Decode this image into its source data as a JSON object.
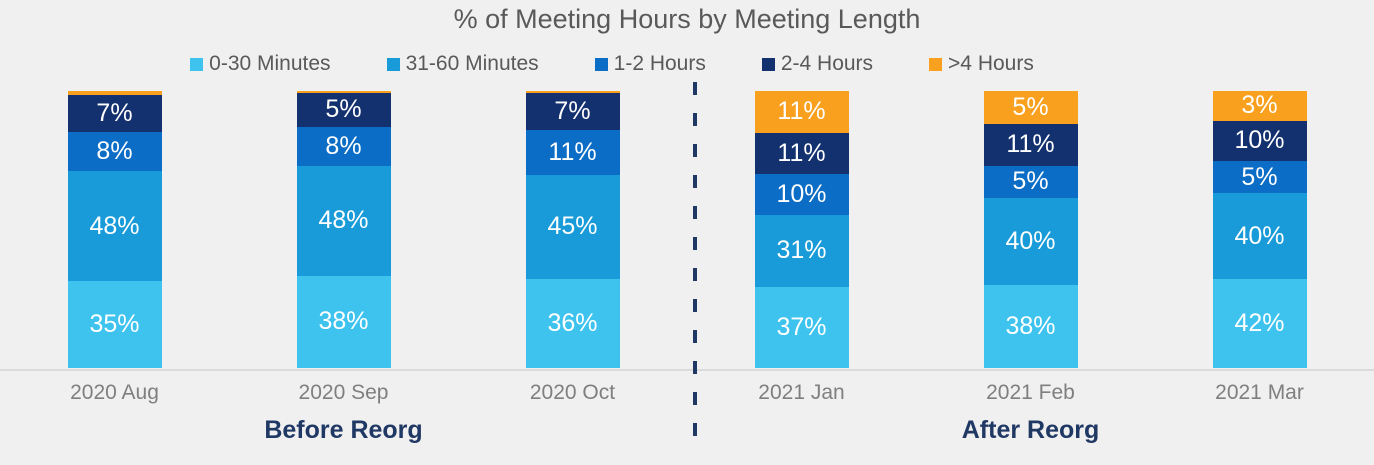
{
  "chart_data": {
    "type": "bar",
    "stacked": true,
    "percent": true,
    "title": "% of Meeting Hours by Meeting Length",
    "categories": [
      "2020 Aug",
      "2020 Sep",
      "2020 Oct",
      "2021 Jan",
      "2021 Feb",
      "2021 Mar"
    ],
    "series": [
      {
        "name": "0-30 Minutes",
        "color": "#3EC3EF",
        "values": [
          35,
          38,
          36,
          37,
          38,
          42
        ],
        "labels": [
          "35%",
          "38%",
          "36%",
          "37%",
          "38%",
          "42%"
        ]
      },
      {
        "name": "31-60 Minutes",
        "color": "#189BD8",
        "values": [
          48,
          48,
          45,
          31,
          40,
          40
        ],
        "labels": [
          "48%",
          "48%",
          "45%",
          "31%",
          "40%",
          "40%"
        ]
      },
      {
        "name": "1-2 Hours",
        "color": "#0B6DC5",
        "values": [
          8,
          8,
          11,
          10,
          5,
          5
        ],
        "labels": [
          "8%",
          "8%",
          "11%",
          "10%",
          "5%",
          "5%"
        ]
      },
      {
        "name": "2-4 Hours",
        "color": "#12316E",
        "values": [
          7,
          5,
          7,
          11,
          11,
          10
        ],
        "labels": [
          "7%",
          "5%",
          "7%",
          "11%",
          "11%",
          "10%"
        ]
      },
      {
        "name": ">4 Hours",
        "color": "#F9A11E",
        "values": [
          2,
          1,
          1,
          11,
          5,
          3
        ],
        "labels": [
          "",
          "",
          "",
          "11%",
          "5%",
          "3%"
        ]
      }
    ],
    "ylim": [
      0,
      100
    ],
    "grid": false,
    "legend_position": "top",
    "annotations": {
      "divider_after_category_index": 2,
      "groups": [
        {
          "label": "Before Reorg",
          "categories": [
            0,
            1,
            2
          ]
        },
        {
          "label": "After Reorg",
          "categories": [
            3,
            4,
            5
          ]
        }
      ]
    },
    "style_colors": {
      "background": "#F0F0F0",
      "title_text": "#595959",
      "legend_text": "#595959",
      "axis_label_text": "#7F7F7F",
      "axis_line": "#DBDBDB",
      "group_label_text": "#1F3864",
      "divider": "#1F3864",
      "bar_value_text": "#FFFFFF"
    }
  }
}
